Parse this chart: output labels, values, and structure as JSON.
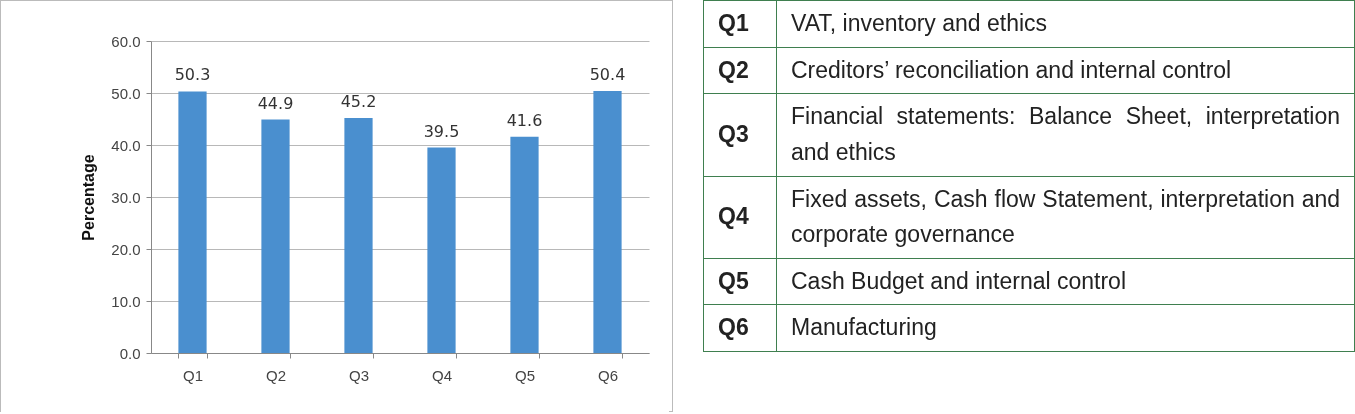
{
  "chart_data": [
    {
      "type": "bar",
      "ylabel": "Percentage",
      "categories": [
        "Q1",
        "Q2",
        "Q3",
        "Q4",
        "Q5",
        "Q6"
      ],
      "values": [
        50.3,
        44.9,
        45.2,
        39.5,
        41.6,
        50.4
      ],
      "color": "#4a8fcf",
      "data_labels": true,
      "ylim": [
        0,
        60
      ],
      "yticks": [
        {
          "value": 0,
          "label": "0.0"
        },
        {
          "value": 10,
          "label": "10.0"
        },
        {
          "value": 20,
          "label": "20.0"
        },
        {
          "value": 30,
          "label": "30.0"
        },
        {
          "value": 40,
          "label": "40.0"
        },
        {
          "value": 50,
          "label": "50.0"
        },
        {
          "value": 60,
          "label": "60.0"
        }
      ],
      "grid": "y",
      "legend": false
    },
    {
      "type": "other",
      "categories": [
        "Q1",
        "Q2",
        "Q3",
        "Q4",
        "Q5",
        "Q6"
      ],
      "annotations": [
        "VAT, inventory and ethics",
        "Creditors’ reconciliation and internal control",
        "Financial statements: Balance Sheet, interpretation and ethics",
        "Fixed assets, Cash flow Statement, interpretation and corporate governance",
        "Cash Budget and internal control",
        "Manufacturing"
      ]
    }
  ]
}
